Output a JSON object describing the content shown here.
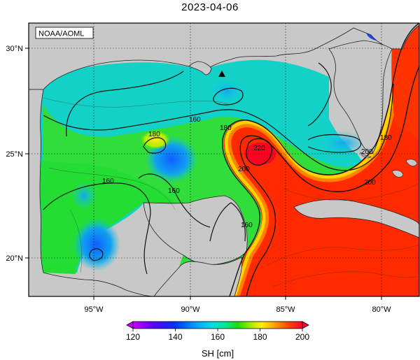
{
  "title": "2023-04-06",
  "credit": "NOAA/AOML",
  "lat_labels": [
    "30°N",
    "25°N",
    "20°N"
  ],
  "lon_labels": [
    "95°W",
    "90°W",
    "85°W",
    "80°W"
  ],
  "colorbar": {
    "label": "SH [cm]",
    "ticks": [
      "120",
      "140",
      "160",
      "180",
      "200"
    ],
    "colors": [
      "#cc00ff",
      "#5a00ff",
      "#0033ff",
      "#00a0ff",
      "#00e0e0",
      "#00e88a",
      "#22dd00",
      "#aaee00",
      "#ffee00",
      "#ff9900",
      "#ff4400",
      "#ff0033"
    ]
  },
  "contour_labels": [
    "160",
    "180",
    "160",
    "160",
    "160",
    "180",
    "200",
    "220",
    "200",
    "180",
    "200"
  ],
  "marker": "triangle",
  "colors": {
    "land": "#c8c8c8",
    "ocean_low": "#00d8d8",
    "ocean_mid": "#22dd22",
    "ocean_high": "#ff3300"
  }
}
